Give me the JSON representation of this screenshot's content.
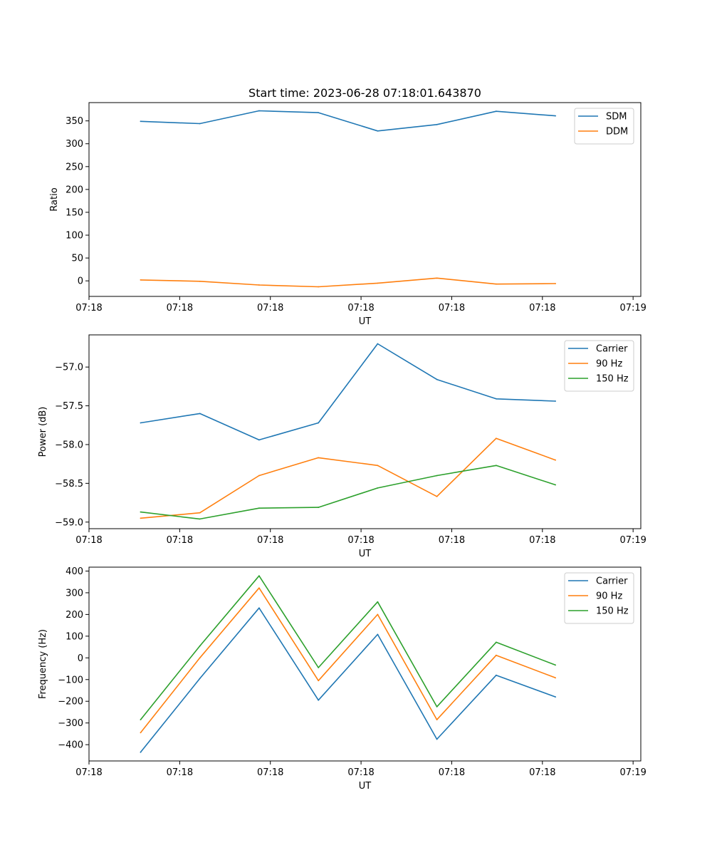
{
  "chart_data": [
    {
      "type": "line",
      "title": "Start time: 2023-06-28 07:18:01.643870",
      "xlabel": "UT",
      "ylabel": "Ratio",
      "x": [
        1,
        2,
        3,
        4,
        5,
        6,
        7,
        8
      ],
      "xlim": [
        0.13,
        9.44
      ],
      "ylim": [
        -34,
        390
      ],
      "x_ticks": [
        0.13,
        1.66,
        3.19,
        4.72,
        6.25,
        7.78,
        9.31
      ],
      "x_tick_labels": [
        "07:18",
        "07:18",
        "07:18",
        "07:18",
        "07:18",
        "07:18",
        "07:19"
      ],
      "y_ticks": [
        0,
        50,
        100,
        150,
        200,
        250,
        300,
        350
      ],
      "y_tick_labels": [
        "0",
        "50",
        "100",
        "150",
        "200",
        "250",
        "300",
        "350"
      ],
      "legend": "top-right",
      "series": [
        {
          "name": "SDM",
          "color": "#1f77b4",
          "values": [
            349,
            344,
            372,
            368,
            328,
            342,
            371,
            361
          ]
        },
        {
          "name": "DDM",
          "color": "#ff7f0e",
          "values": [
            2,
            -1,
            -9,
            -13,
            -5,
            6,
            -7,
            -6
          ]
        }
      ]
    },
    {
      "type": "line",
      "title": "",
      "xlabel": "UT",
      "ylabel": "Power (dB)",
      "x": [
        1,
        2,
        3,
        4,
        5,
        6,
        7,
        8
      ],
      "xlim": [
        0.13,
        9.44
      ],
      "ylim": [
        -59.085,
        -56.585
      ],
      "x_ticks": [
        0.13,
        1.66,
        3.19,
        4.72,
        6.25,
        7.78,
        9.31
      ],
      "x_tick_labels": [
        "07:18",
        "07:18",
        "07:18",
        "07:18",
        "07:18",
        "07:18",
        "07:19"
      ],
      "y_ticks": [
        -59.0,
        -58.5,
        -58.0,
        -57.5,
        -57.0
      ],
      "y_tick_labels": [
        "−59.0",
        "−58.5",
        "−58.0",
        "−57.5",
        "−57.0"
      ],
      "legend": "top-right",
      "series": [
        {
          "name": "Carrier",
          "color": "#1f77b4",
          "values": [
            -57.72,
            -57.6,
            -57.94,
            -57.72,
            -56.7,
            -57.16,
            -57.41,
            -57.44
          ]
        },
        {
          "name": "90 Hz",
          "color": "#ff7f0e",
          "values": [
            -58.95,
            -58.88,
            -58.4,
            -58.17,
            -58.27,
            -58.67,
            -57.92,
            -58.2
          ]
        },
        {
          "name": "150 Hz",
          "color": "#2ca02c",
          "values": [
            -58.87,
            -58.96,
            -58.82,
            -58.81,
            -58.56,
            -58.4,
            -58.27,
            -58.52
          ]
        }
      ]
    },
    {
      "type": "line",
      "title": "",
      "xlabel": "UT",
      "ylabel": "Frequency (Hz)",
      "x": [
        1,
        2,
        3,
        4,
        5,
        6,
        7,
        8
      ],
      "xlim": [
        0.13,
        9.44
      ],
      "ylim": [
        -475,
        418
      ],
      "x_ticks": [
        0.13,
        1.66,
        3.19,
        4.72,
        6.25,
        7.78,
        9.31
      ],
      "x_tick_labels": [
        "07:18",
        "07:18",
        "07:18",
        "07:18",
        "07:18",
        "07:18",
        "07:19"
      ],
      "y_ticks": [
        -400,
        -300,
        -200,
        -100,
        0,
        100,
        200,
        300,
        400
      ],
      "y_tick_labels": [
        "−400",
        "−300",
        "−200",
        "−100",
        "0",
        "100",
        "200",
        "300",
        "400"
      ],
      "legend": "top-right",
      "series": [
        {
          "name": "Carrier",
          "color": "#1f77b4",
          "values": [
            -435,
            -95,
            230,
            -195,
            108,
            -375,
            -80,
            -180
          ]
        },
        {
          "name": "90 Hz",
          "color": "#ff7f0e",
          "values": [
            -345,
            0,
            322,
            -105,
            200,
            -285,
            12,
            -92
          ]
        },
        {
          "name": "150 Hz",
          "color": "#2ca02c",
          "values": [
            -285,
            55,
            378,
            -45,
            258,
            -225,
            72,
            -33
          ]
        }
      ]
    }
  ]
}
